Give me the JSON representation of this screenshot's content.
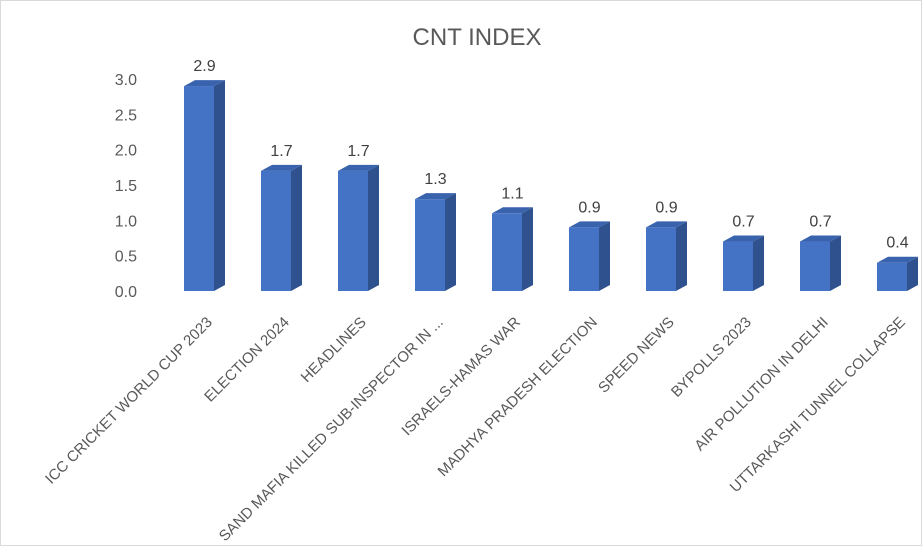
{
  "chart_data": {
    "type": "bar",
    "style": "3d-column",
    "title": "CNT INDEX",
    "xlabel": "",
    "ylabel": "",
    "ylim": [
      0,
      3.0
    ],
    "yticks": [
      "0.0",
      "0.5",
      "1.0",
      "1.5",
      "2.0",
      "2.5",
      "3.0"
    ],
    "grid": false,
    "legend": "none",
    "categories": [
      "ICC CRICKET WORLD CUP 2023",
      "ELECTION 2024",
      "HEADLINES",
      "SAND MAFIA KILLED SUB-INSPECTOR IN ...",
      "ISRAELS-HAMAS WAR",
      "MADHYA PRADESH ELECTION",
      "SPEED NEWS",
      "BYPOLLS 2023",
      "AIR POLLUTION IN DELHI",
      "UTTARKASHI TUNNEL COLLAPSE"
    ],
    "values": [
      2.9,
      1.7,
      1.7,
      1.3,
      1.1,
      0.9,
      0.9,
      0.7,
      0.7,
      0.4
    ],
    "data_labels": [
      "2.9",
      "1.7",
      "1.7",
      "1.3",
      "1.1",
      "0.9",
      "0.9",
      "0.7",
      "0.7",
      "0.4"
    ],
    "colors": {
      "front": "#4472c4",
      "side": "#2f528f",
      "top": "#3a63ad"
    }
  }
}
